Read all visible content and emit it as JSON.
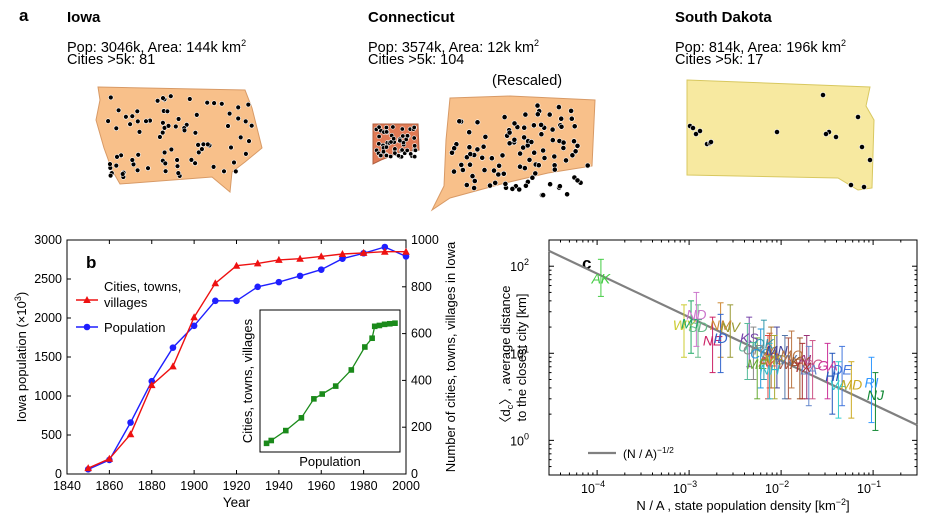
{
  "panel_a": {
    "letter": "a",
    "states": [
      {
        "name": "Iowa",
        "pop_line": "Pop:  3046k,  Area: 144k km",
        "area_exp": "2",
        "cities_line": "Cities >5k: 81",
        "fill": "#f8c08a"
      },
      {
        "name": "Connecticut",
        "pop_line": "Pop:  3574k,  Area: 12k km",
        "area_exp": "2",
        "cities_line": "Cities >5k: 104",
        "fill": "#f8c08a",
        "rescaled_label": "(Rescaled)"
      },
      {
        "name": "South Dakota",
        "pop_line": "Pop:  814k,  Area: 196k km",
        "area_exp": "2",
        "cities_line": "Cities >5k: 17",
        "fill": "#f7e9a0"
      }
    ]
  },
  "chart_data": [
    {
      "id": "b",
      "type": "line",
      "panel_letter": "b",
      "x": [
        1850,
        1860,
        1870,
        1880,
        1890,
        1900,
        1910,
        1920,
        1930,
        1940,
        1950,
        1960,
        1970,
        1980,
        1990,
        2000
      ],
      "series": [
        {
          "name": "Population",
          "axis": "left",
          "color": "#1f1fff",
          "marker": "circle",
          "values": [
            60,
            180,
            660,
            1190,
            1620,
            1900,
            2220,
            2220,
            2400,
            2460,
            2540,
            2620,
            2760,
            2830,
            2910,
            2790
          ]
        },
        {
          "name": "Cities, towns, villages",
          "axis": "right",
          "color": "#ee1111",
          "marker": "triangle",
          "values": [
            25,
            65,
            170,
            380,
            460,
            670,
            815,
            890,
            900,
            915,
            920,
            930,
            940,
            945,
            950,
            950
          ]
        }
      ],
      "xlabel": "Year",
      "ylabel_left": "Iowa population (×10",
      "ylabel_left_exp": "3",
      "ylabel_left_close": ")",
      "ylabel_right": "Number of cities, towns, villages in Iowa",
      "xlim": [
        1840,
        2000
      ],
      "ylim_left": [
        0,
        3000
      ],
      "ylim_right": [
        0,
        1000
      ],
      "xticks": [
        "1840",
        "1860",
        "1880",
        "1900",
        "1920",
        "1940",
        "1960",
        "1980",
        "2000"
      ],
      "yticks_left": [
        "0",
        "500",
        "1000",
        "1500",
        "2000",
        "2500",
        "3000"
      ],
      "yticks_right": [
        "0",
        "200",
        "400",
        "600",
        "800",
        "1000"
      ],
      "legend": [
        {
          "label_lines": [
            "Cities, towns,",
            "villages"
          ]
        },
        {
          "label_lines": [
            "Population"
          ]
        }
      ],
      "legend_position": "upper-left",
      "inset": {
        "type": "line",
        "color": "#1a8a1a",
        "marker": "square",
        "xlabel": "Population",
        "ylabel": "Cities, towns, villages",
        "x": [
          0.3,
          1.2,
          4,
          7,
          9.4,
          11,
          13.6,
          16.6,
          19.2,
          20.6,
          21.1,
          22,
          23,
          24,
          25
        ],
        "y": [
          2.0,
          3.0,
          6.5,
          11.0,
          17.7,
          19.4,
          22.2,
          27.9,
          36.0,
          39.1,
          43.3,
          43.6,
          44.0,
          44.2,
          44.4
        ],
        "xlim": [
          0,
          25
        ],
        "ylim": [
          0,
          48
        ]
      }
    },
    {
      "id": "c",
      "type": "scatter",
      "panel_letter": "c",
      "xscale": "log",
      "yscale": "log",
      "xlim": [
        3e-05,
        0.3
      ],
      "ylim": [
        0.4,
        200
      ],
      "xlabel": "N / A , state population density [km",
      "xlabel_exp": "−2",
      "xlabel_close": "]",
      "ylabel_lines": [
        "〈d",
        "〉, average distance",
        "to the closest city [km]"
      ],
      "ylabel_sub": "c",
      "xticks": [
        "10",
        "10",
        "10",
        "10"
      ],
      "xtick_exps": [
        "−4",
        "−3",
        "−2",
        "−1"
      ],
      "xtick_values": [
        0.0001,
        0.001,
        0.01,
        0.1
      ],
      "yticks": [
        "10",
        "10",
        "10"
      ],
      "ytick_exps": [
        "0",
        "1",
        "2"
      ],
      "ytick_values": [
        1,
        10,
        100
      ],
      "fit": {
        "label": "(N / A)",
        "label_exp": "−1/2",
        "color": "#808080",
        "x": [
          3e-05,
          0.3
        ],
        "y": [
          150,
          1.5
        ]
      },
      "points": [
        {
          "label": "AK",
          "x": 0.00011,
          "y": 72,
          "color": "#44cc44",
          "err_lo": 45,
          "err_hi": 120
        },
        {
          "label": "WY",
          "x": 0.00088,
          "y": 21,
          "color": "#cccc33",
          "err_lo": 9,
          "err_hi": 36
        },
        {
          "label": "MT",
          "x": 0.00105,
          "y": 22,
          "color": "#22aa66",
          "err_lo": 10,
          "err_hi": 40
        },
        {
          "label": "SD",
          "x": 0.00125,
          "y": 20,
          "color": "#66bb88",
          "err_lo": 9,
          "err_hi": 36
        },
        {
          "label": "ND",
          "x": 0.0012,
          "y": 28,
          "color": "#cc77cc",
          "err_lo": 12,
          "err_hi": 50
        },
        {
          "label": "NM",
          "x": 0.0022,
          "y": 21,
          "color": "#cc8833",
          "err_lo": 9,
          "err_hi": 38
        },
        {
          "label": "NV",
          "x": 0.0028,
          "y": 20,
          "color": "#999933",
          "err_lo": 9,
          "err_hi": 36
        },
        {
          "label": "NE",
          "x": 0.0018,
          "y": 14,
          "color": "#cc2266",
          "err_lo": 6,
          "err_hi": 26
        },
        {
          "label": "ID",
          "x": 0.0022,
          "y": 15,
          "color": "#3366cc",
          "err_lo": 6,
          "err_hi": 28
        },
        {
          "label": "KS",
          "x": 0.0045,
          "y": 15,
          "color": "#7744aa",
          "err_lo": 7,
          "err_hi": 26
        },
        {
          "label": "UT",
          "x": 0.0043,
          "y": 12,
          "color": "#55bb99",
          "err_lo": 5,
          "err_hi": 22
        },
        {
          "label": "OK",
          "x": 0.0065,
          "y": 13,
          "color": "#3399aa",
          "err_lo": 5,
          "err_hi": 24
        },
        {
          "label": "OR",
          "x": 0.005,
          "y": 11,
          "color": "#888888",
          "err_lo": 5,
          "err_hi": 20
        },
        {
          "label": "CO",
          "x": 0.006,
          "y": 10,
          "color": "#2299dd",
          "err_lo": 4,
          "err_hi": 19
        },
        {
          "label": "IA",
          "x": 0.0078,
          "y": 10.5,
          "color": "#aa7733",
          "err_lo": 4,
          "err_hi": 20
        },
        {
          "label": "AR",
          "x": 0.0075,
          "y": 9,
          "color": "#cc6633",
          "err_lo": 4,
          "err_hi": 17
        },
        {
          "label": "MN",
          "x": 0.009,
          "y": 10.8,
          "color": "#444499",
          "err_lo": 4,
          "err_hi": 20
        },
        {
          "label": "AZ",
          "x": 0.0072,
          "y": 8,
          "color": "#dd4444",
          "err_lo": 3,
          "err_hi": 16
        },
        {
          "label": "MS",
          "x": 0.0085,
          "y": 8.5,
          "color": "#aaaa33",
          "err_lo": 3,
          "err_hi": 16
        },
        {
          "label": "ME",
          "x": 0.0055,
          "y": 7.5,
          "color": "#66aa33",
          "err_lo": 3,
          "err_hi": 15
        },
        {
          "label": "WA",
          "x": 0.012,
          "y": 7.5,
          "color": "#aa5544",
          "err_lo": 3,
          "err_hi": 15
        },
        {
          "label": "WV",
          "x": 0.011,
          "y": 8.5,
          "color": "#5577aa",
          "err_lo": 3,
          "err_hi": 16
        },
        {
          "label": "MO",
          "x": 0.013,
          "y": 9.5,
          "color": "#bb7744",
          "err_lo": 4,
          "err_hi": 18
        },
        {
          "label": "NH",
          "x": 0.0075,
          "y": 6.5,
          "color": "#33bbcc",
          "err_lo": 3,
          "err_hi": 13
        },
        {
          "label": "KY",
          "x": 0.016,
          "y": 8,
          "color": "#995522",
          "err_lo": 3,
          "err_hi": 15
        },
        {
          "label": "AL",
          "x": 0.019,
          "y": 8.5,
          "color": "#993377",
          "err_lo": 3,
          "err_hi": 16
        },
        {
          "label": "SC",
          "x": 0.022,
          "y": 7.5,
          "color": "#cc5588",
          "err_lo": 3,
          "err_hi": 14
        },
        {
          "label": "LA",
          "x": 0.02,
          "y": 6.5,
          "color": "#6688cc",
          "err_lo": 2.5,
          "err_hi": 12
        },
        {
          "label": "TX",
          "x": 0.017,
          "y": 7,
          "color": "#aa3333",
          "err_lo": 3,
          "err_hi": 13
        },
        {
          "label": "GA",
          "x": 0.032,
          "y": 7.2,
          "color": "#cc3399",
          "err_lo": 3,
          "err_hi": 13
        },
        {
          "label": "DE",
          "x": 0.046,
          "y": 6.5,
          "color": "#4477dd",
          "err_lo": 2.5,
          "err_hi": 12
        },
        {
          "label": "HI",
          "x": 0.036,
          "y": 5.5,
          "color": "#2255bb",
          "err_lo": 2,
          "err_hi": 10
        },
        {
          "label": "VA",
          "x": 0.042,
          "y": 4.3,
          "color": "#33cccc",
          "err_lo": 1.8,
          "err_hi": 8
        },
        {
          "label": "MD",
          "x": 0.058,
          "y": 4.4,
          "color": "#ccaa22",
          "err_lo": 1.8,
          "err_hi": 8
        },
        {
          "label": "RI",
          "x": 0.096,
          "y": 4.6,
          "color": "#3399ff",
          "err_lo": 1.6,
          "err_hi": 9
        },
        {
          "label": "NJ",
          "x": 0.106,
          "y": 3.3,
          "color": "#118833",
          "err_lo": 1.3,
          "err_hi": 6
        }
      ]
    }
  ]
}
